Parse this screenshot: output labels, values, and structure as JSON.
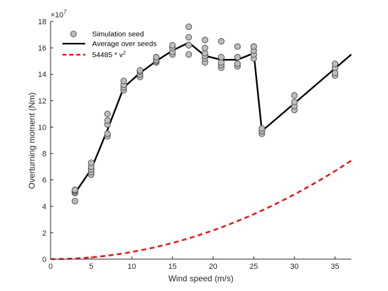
{
  "chart_data": {
    "type": "scatter",
    "xlabel": "Wind speed (m/s)",
    "ylabel": "Overturning moment (Nm)",
    "y_exponent_label": "×10",
    "y_exponent": "7",
    "xlim": [
      0,
      37
    ],
    "ylim": [
      0,
      18
    ],
    "x_ticks": [
      "0",
      "5",
      "10",
      "15",
      "20",
      "25",
      "30",
      "35"
    ],
    "y_ticks": [
      "0",
      "2",
      "4",
      "6",
      "8",
      "10",
      "12",
      "14",
      "16",
      "18"
    ],
    "grid": false,
    "legend_position": "top-left",
    "colors": {
      "seed_fill": "#bdbdbd",
      "seed_edge": "#4a4a4a",
      "average": "#000000",
      "fit": "#e31a1c",
      "axis": "#262626"
    },
    "series": [
      {
        "name": "Simulation seed",
        "kind": "scatter",
        "points": [
          [
            3,
            4.4
          ],
          [
            3,
            5.0
          ],
          [
            3,
            5.1
          ],
          [
            3,
            5.2
          ],
          [
            3,
            5.25
          ],
          [
            5,
            6.4
          ],
          [
            5,
            6.6
          ],
          [
            5,
            6.8
          ],
          [
            5,
            7.0
          ],
          [
            5,
            7.3
          ],
          [
            7,
            9.3
          ],
          [
            7,
            9.5
          ],
          [
            7,
            10.2
          ],
          [
            7,
            10.5
          ],
          [
            7,
            11.0
          ],
          [
            9,
            12.8
          ],
          [
            9,
            13.0
          ],
          [
            9,
            13.2
          ],
          [
            9,
            13.5
          ],
          [
            11,
            13.8
          ],
          [
            11,
            14.0
          ],
          [
            11,
            14.2
          ],
          [
            11,
            14.3
          ],
          [
            13,
            14.9
          ],
          [
            13,
            15.0
          ],
          [
            13,
            15.1
          ],
          [
            13,
            15.3
          ],
          [
            15,
            15.5
          ],
          [
            15,
            15.7
          ],
          [
            15,
            16.0
          ],
          [
            15,
            16.2
          ],
          [
            17,
            15.5
          ],
          [
            17,
            16.2
          ],
          [
            17,
            16.8
          ],
          [
            17,
            17.6
          ],
          [
            19,
            14.9
          ],
          [
            19,
            15.2
          ],
          [
            19,
            15.4
          ],
          [
            19,
            15.6
          ],
          [
            19,
            16.0
          ],
          [
            19,
            16.6
          ],
          [
            21,
            14.5
          ],
          [
            21,
            14.7
          ],
          [
            21,
            14.9
          ],
          [
            21,
            15.3
          ],
          [
            21,
            16.5
          ],
          [
            23,
            14.6
          ],
          [
            23,
            14.8
          ],
          [
            23,
            15.3
          ],
          [
            23,
            16.1
          ],
          [
            25,
            15.2
          ],
          [
            25,
            15.5
          ],
          [
            25,
            15.8
          ],
          [
            25,
            16.1
          ],
          [
            26,
            9.5
          ],
          [
            26,
            9.7
          ],
          [
            26,
            9.9
          ],
          [
            30,
            11.3
          ],
          [
            30,
            11.6
          ],
          [
            30,
            11.9
          ],
          [
            30,
            12.4
          ],
          [
            35,
            13.9
          ],
          [
            35,
            14.1
          ],
          [
            35,
            14.5
          ],
          [
            35,
            14.8
          ]
        ]
      },
      {
        "name": "Average over seeds",
        "kind": "line",
        "points": [
          [
            3,
            5.0
          ],
          [
            5,
            6.8
          ],
          [
            7,
            9.8
          ],
          [
            9,
            13.0
          ],
          [
            11,
            14.1
          ],
          [
            13,
            15.0
          ],
          [
            15,
            15.8
          ],
          [
            17,
            16.4
          ],
          [
            19,
            15.4
          ],
          [
            21,
            15.1
          ],
          [
            23,
            15.1
          ],
          [
            25,
            15.6
          ],
          [
            26,
            9.7
          ],
          [
            30,
            11.8
          ],
          [
            37,
            15.5
          ]
        ]
      },
      {
        "name": "54485 * v",
        "name_superscript": "2",
        "kind": "dashed-line",
        "coefficient": 54485,
        "exponent": 2,
        "scale": 10000000,
        "x_range": [
          0,
          37
        ]
      }
    ]
  }
}
